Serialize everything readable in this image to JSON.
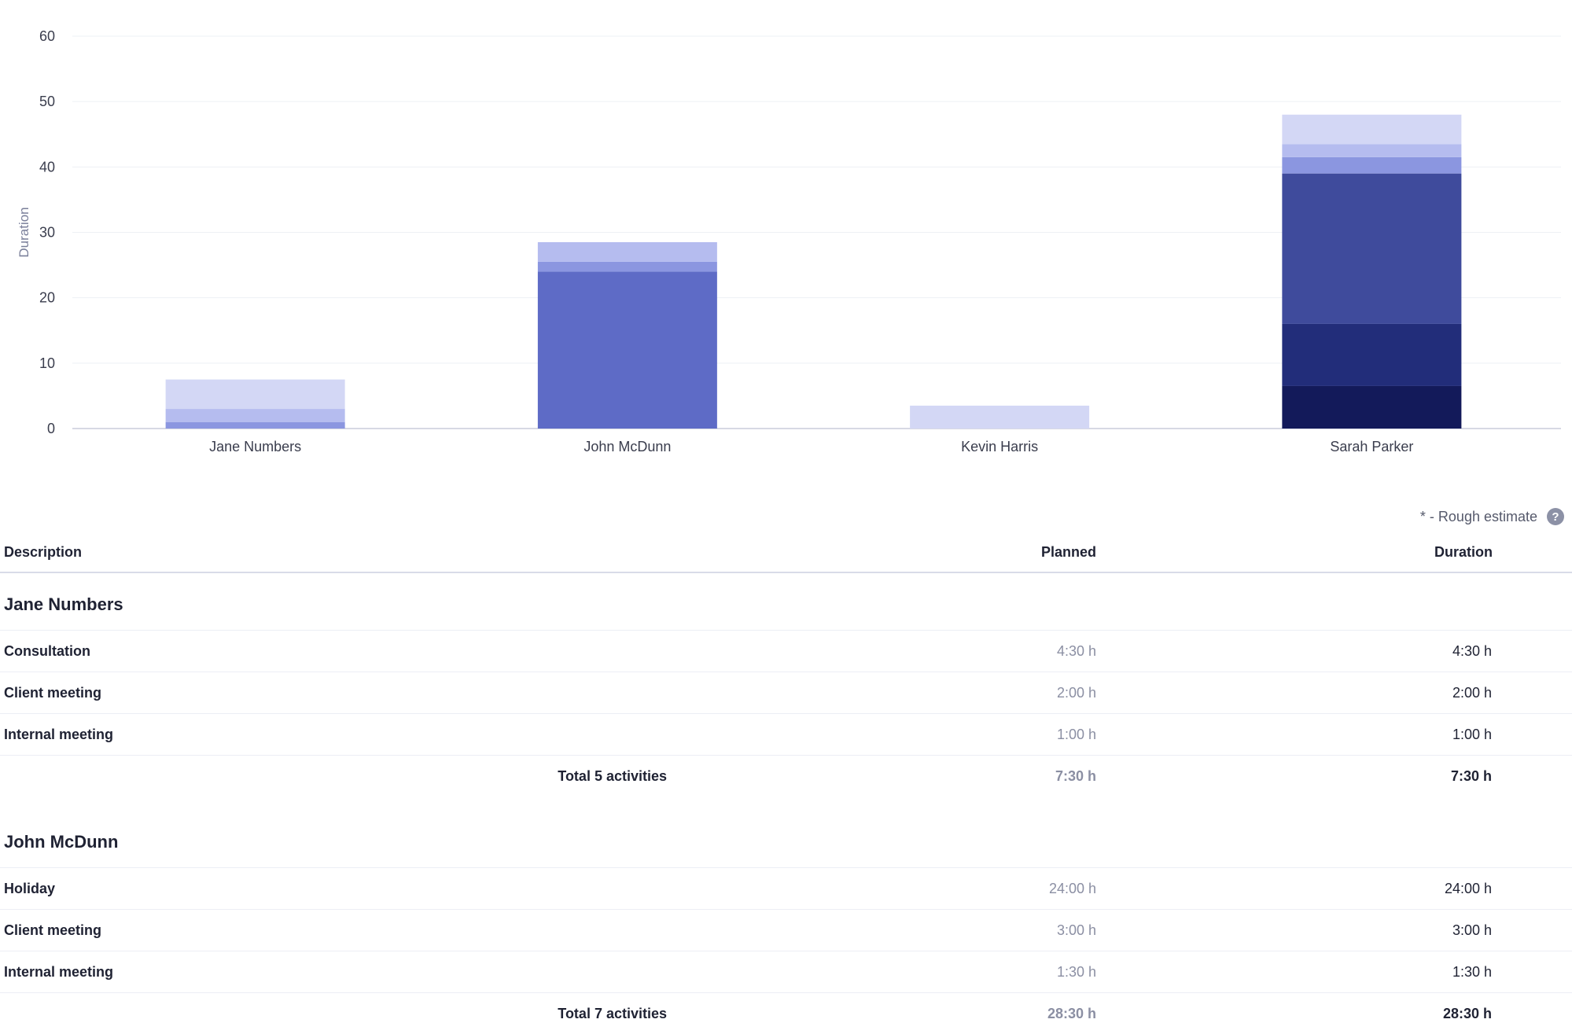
{
  "chart_data": {
    "type": "bar",
    "stacked": true,
    "ylabel": "Duration",
    "ylim": [
      0,
      60
    ],
    "yticks": [
      0,
      10,
      20,
      30,
      40,
      50,
      60
    ],
    "grid": true,
    "categories": [
      "Jane Numbers",
      "John McDunn",
      "Kevin Harris",
      "Sarah Parker"
    ],
    "series": [
      {
        "color": "#131a5a",
        "values": [
          0,
          0,
          0,
          6.5
        ]
      },
      {
        "color": "#222d7a",
        "values": [
          0,
          0,
          0,
          9.5
        ]
      },
      {
        "color": "#3f4b9c",
        "values": [
          0,
          0,
          0,
          23
        ]
      },
      {
        "color": "#5e6bc6",
        "values": [
          0,
          24,
          0,
          0
        ]
      },
      {
        "color": "#8b96e0",
        "values": [
          1,
          1.5,
          0,
          2.5
        ]
      },
      {
        "color": "#b5bcef",
        "values": [
          2,
          3,
          0,
          2
        ]
      },
      {
        "color": "#d3d7f5",
        "values": [
          4.5,
          0,
          3.5,
          4.5
        ]
      }
    ]
  },
  "note": {
    "text": "* - Rough estimate",
    "help_icon": "?"
  },
  "table": {
    "headers": {
      "description": "Description",
      "planned": "Planned",
      "duration": "Duration"
    },
    "groups": [
      {
        "name": "Jane Numbers",
        "rows": [
          {
            "desc": "Consultation",
            "planned": "4:30 h",
            "duration": "4:30 h"
          },
          {
            "desc": "Client meeting",
            "planned": "2:00 h",
            "duration": "2:00 h"
          },
          {
            "desc": "Internal meeting",
            "planned": "1:00 h",
            "duration": "1:00 h"
          }
        ],
        "total": {
          "label": "Total 5 activities",
          "planned": "7:30 h",
          "duration": "7:30 h"
        }
      },
      {
        "name": "John McDunn",
        "rows": [
          {
            "desc": "Holiday",
            "planned": "24:00 h",
            "duration": "24:00 h"
          },
          {
            "desc": "Client meeting",
            "planned": "3:00 h",
            "duration": "3:00 h"
          },
          {
            "desc": "Internal meeting",
            "planned": "1:30 h",
            "duration": "1:30 h"
          }
        ],
        "total": {
          "label": "Total 7 activities",
          "planned": "28:30 h",
          "duration": "28:30 h"
        }
      }
    ]
  }
}
